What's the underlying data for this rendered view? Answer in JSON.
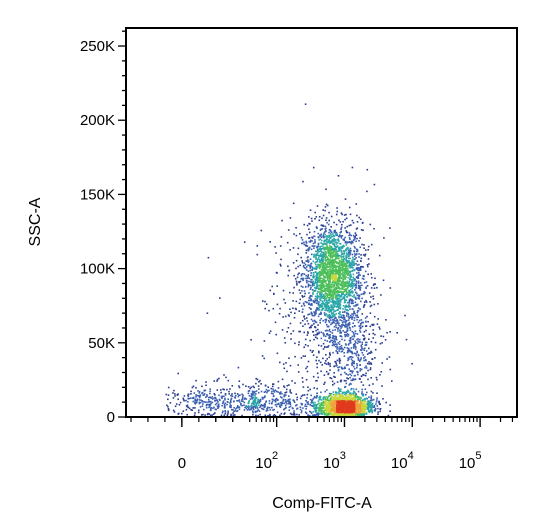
{
  "chart_data": {
    "type": "scatter",
    "subtype": "flow-cytometry-density-dot-plot",
    "xlabel": "Comp-FITC-A",
    "ylabel": "SSC-A",
    "x_scale": "biexponential",
    "y_scale": "linear",
    "ylim": [
      0,
      262144
    ],
    "xlim": [
      -30,
      350000
    ],
    "x_ticks": [
      {
        "value": 0,
        "label": "0"
      },
      {
        "value": 100,
        "base": "10",
        "exp": "2"
      },
      {
        "value": 1000,
        "base": "10",
        "exp": "3"
      },
      {
        "value": 10000,
        "base": "10",
        "exp": "4"
      },
      {
        "value": 100000,
        "base": "10",
        "exp": "5"
      }
    ],
    "y_ticks": [
      {
        "value": 0,
        "label": "0"
      },
      {
        "value": 50000,
        "label": "50K"
      },
      {
        "value": 100000,
        "label": "100K"
      },
      {
        "value": 150000,
        "label": "150K"
      },
      {
        "value": 200000,
        "label": "200K"
      },
      {
        "value": 250000,
        "label": "250K"
      }
    ],
    "populations": [
      {
        "name": "",
        "center_x": 650,
        "center_y": 95000,
        "spread_x_decades": 0.22,
        "spread_y": 18000,
        "relative_count": 0.42
      },
      {
        "name": "",
        "center_x": 1000,
        "center_y": 7000,
        "spread_x_decades": 0.2,
        "spread_y": 4500,
        "relative_count": 0.3
      },
      {
        "name": "",
        "center_x": 1200,
        "center_y": 45000,
        "spread_x_decades": 0.2,
        "spread_y": 15000,
        "relative_count": 0.07
      },
      {
        "name": "",
        "center_x": 60,
        "center_y": 10000,
        "spread_x_decades": 0.45,
        "spread_y": 6000,
        "relative_count": 0.13
      },
      {
        "name": "",
        "center_x": 500,
        "center_y": 60000,
        "spread_x_decades": 0.5,
        "spread_y": 40000,
        "relative_count": 0.08
      }
    ],
    "density_colors": [
      "#2c3d8f",
      "#3a5fb0",
      "#2aa6a8",
      "#4cbf5a",
      "#c8d83c",
      "#f0a03a",
      "#e03a1e"
    ],
    "grid": false,
    "legend": "none"
  }
}
